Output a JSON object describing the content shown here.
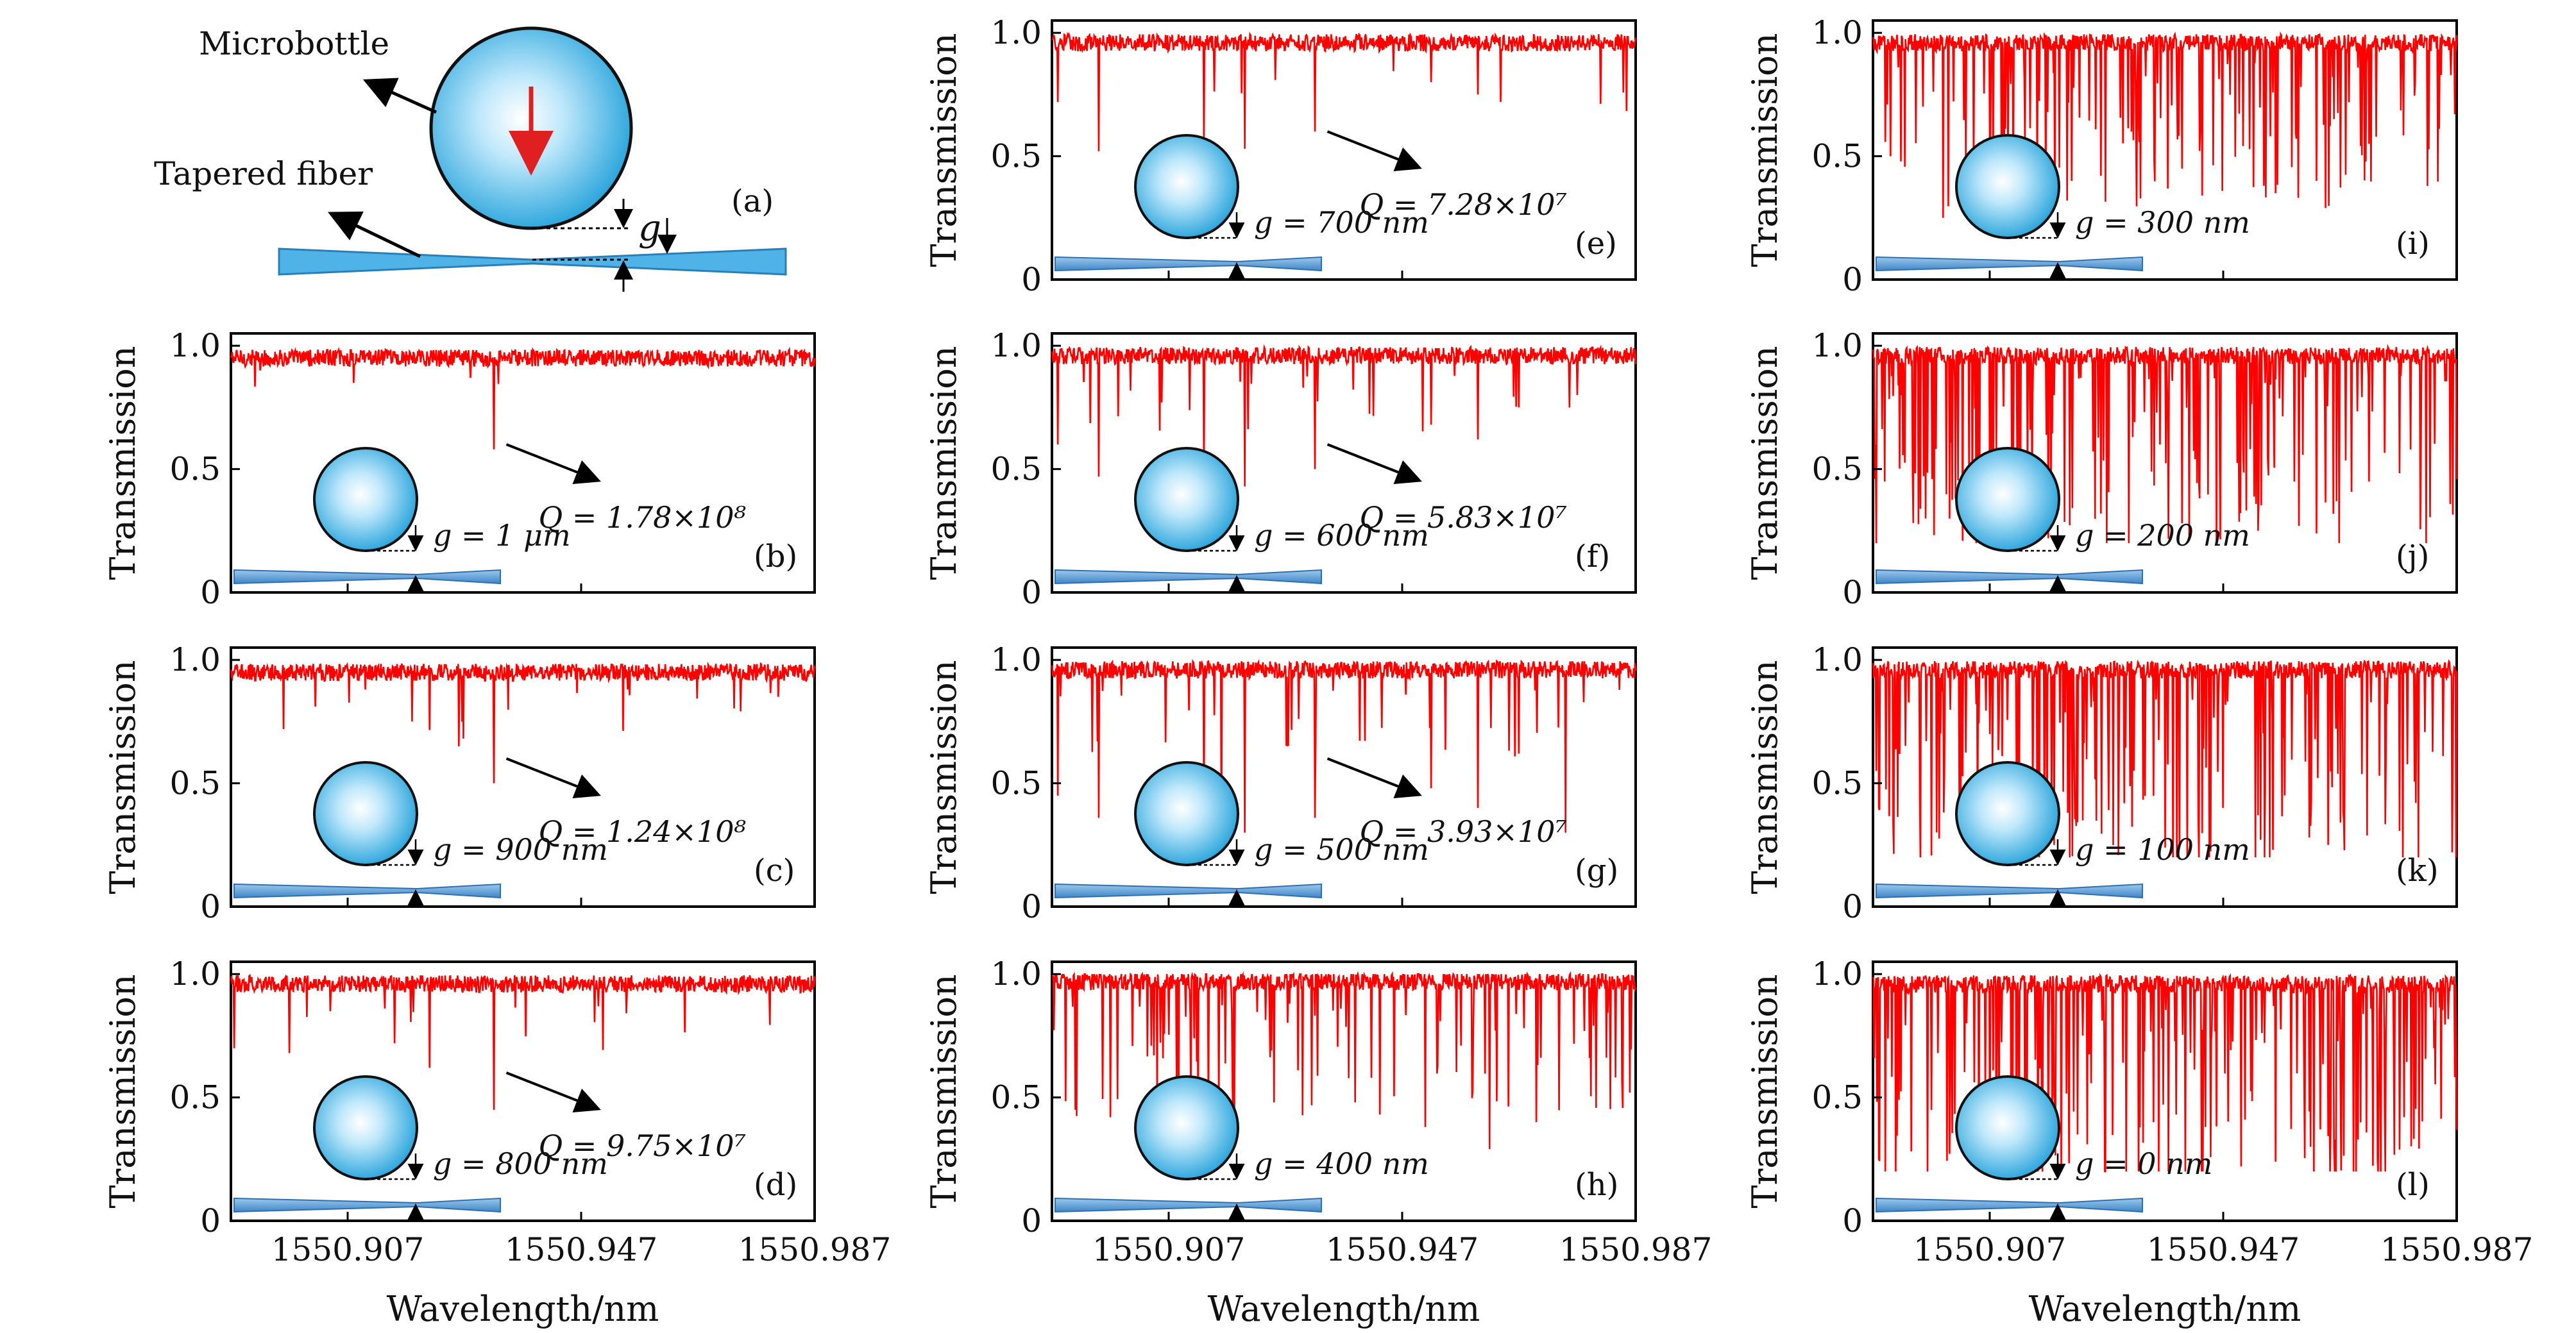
{
  "schematic": {
    "label": "(a)",
    "microbottle_label": "Microbottle",
    "fiber_label": "Tapered fiber",
    "gap_symbol": "g"
  },
  "axes": {
    "ylabel": "Transmission",
    "xlabel": "Wavelength/nm",
    "yticks": [
      "0",
      "0.5",
      "1.0"
    ],
    "xticks": [
      "1550.907",
      "1550.947",
      "1550.987"
    ]
  },
  "colors": {
    "trace": "#ff0000",
    "sphere_center": "#e6f7ff",
    "sphere_edge": "#1d9fd9",
    "fiber": "#5aa3d9",
    "arrow_red": "#e02020"
  },
  "chart_data": [
    {
      "id": "b",
      "type": "line",
      "label": "(b)",
      "gap": "g = 1 μm",
      "q": "Q = 1.78×10⁸",
      "xlim": [
        1550.887,
        1550.987
      ],
      "ylim": [
        0,
        1.05
      ],
      "baseline": 0.95,
      "density": 8,
      "dips": [
        {
          "x": 1550.932,
          "y": 0.58
        },
        {
          "x": 1550.908,
          "y": 0.85
        },
        {
          "x": 1550.928,
          "y": 0.87
        },
        {
          "x": 1550.892,
          "y": 0.9
        }
      ]
    },
    {
      "id": "c",
      "type": "line",
      "label": "(c)",
      "gap": "g = 900 nm",
      "q": "Q = 1.24×10⁸",
      "xlim": [
        1550.887,
        1550.987
      ],
      "ylim": [
        0,
        1.05
      ],
      "baseline": 0.95,
      "density": 10,
      "dips": [
        {
          "x": 1550.932,
          "y": 0.5
        },
        {
          "x": 1550.896,
          "y": 0.72
        },
        {
          "x": 1550.918,
          "y": 0.75
        },
        {
          "x": 1550.926,
          "y": 0.65
        },
        {
          "x": 1550.91,
          "y": 0.88
        },
        {
          "x": 1550.955,
          "y": 0.88
        }
      ]
    },
    {
      "id": "d",
      "type": "line",
      "label": "(d)",
      "gap": "g = 800 nm",
      "q": "Q = 9.75×10⁷",
      "xlim": [
        1550.887,
        1550.987
      ],
      "ylim": [
        0,
        1.05
      ],
      "baseline": 0.96,
      "density": 12,
      "dips": [
        {
          "x": 1550.932,
          "y": 0.45
        },
        {
          "x": 1550.897,
          "y": 0.68
        },
        {
          "x": 1550.915,
          "y": 0.72
        },
        {
          "x": 1550.921,
          "y": 0.62
        },
        {
          "x": 1550.904,
          "y": 0.85
        },
        {
          "x": 1550.95,
          "y": 0.87
        }
      ]
    },
    {
      "id": "e",
      "type": "line",
      "label": "(e)",
      "gap": "g = 700 nm",
      "q": "Q = 7.28×10⁷",
      "xlim": [
        1550.887,
        1550.987
      ],
      "ylim": [
        0,
        1.05
      ],
      "baseline": 0.96,
      "density": 14,
      "dips": [
        {
          "x": 1550.888,
          "y": 0.72
        },
        {
          "x": 1550.895,
          "y": 0.52
        },
        {
          "x": 1550.913,
          "y": 0.55
        },
        {
          "x": 1550.92,
          "y": 0.53
        },
        {
          "x": 1550.932,
          "y": 0.6
        },
        {
          "x": 1550.952,
          "y": 0.8
        },
        {
          "x": 1550.96,
          "y": 0.75
        }
      ]
    },
    {
      "id": "f",
      "type": "line",
      "label": "(f)",
      "gap": "g = 600 nm",
      "q": "Q = 5.83×10⁷",
      "xlim": [
        1550.887,
        1550.987
      ],
      "ylim": [
        0,
        1.05
      ],
      "baseline": 0.96,
      "density": 20,
      "dips": [
        {
          "x": 1550.888,
          "y": 0.6
        },
        {
          "x": 1550.895,
          "y": 0.47
        },
        {
          "x": 1550.913,
          "y": 0.48
        },
        {
          "x": 1550.92,
          "y": 0.43
        },
        {
          "x": 1550.932,
          "y": 0.5
        },
        {
          "x": 1550.952,
          "y": 0.68
        },
        {
          "x": 1550.96,
          "y": 0.62
        },
        {
          "x": 1550.967,
          "y": 0.75
        },
        {
          "x": 1550.977,
          "y": 0.8
        }
      ]
    },
    {
      "id": "g",
      "type": "line",
      "label": "(g)",
      "gap": "g = 500 nm",
      "q": "Q = 3.93×10⁷",
      "xlim": [
        1550.887,
        1550.987
      ],
      "ylim": [
        0,
        1.05
      ],
      "baseline": 0.96,
      "density": 32,
      "dips": [
        {
          "x": 1550.888,
          "y": 0.45
        },
        {
          "x": 1550.895,
          "y": 0.36
        },
        {
          "x": 1550.913,
          "y": 0.38
        },
        {
          "x": 1550.916,
          "y": 0.27
        },
        {
          "x": 1550.92,
          "y": 0.3
        },
        {
          "x": 1550.932,
          "y": 0.36
        },
        {
          "x": 1550.952,
          "y": 0.48
        },
        {
          "x": 1550.96,
          "y": 0.4
        },
        {
          "x": 1550.967,
          "y": 0.62
        },
        {
          "x": 1550.975,
          "y": 0.3
        }
      ]
    },
    {
      "id": "h",
      "type": "line",
      "label": "(h)",
      "gap": "g = 400 nm",
      "q": "",
      "xlim": [
        1550.887,
        1550.987
      ],
      "ylim": [
        0,
        1.05
      ],
      "baseline": 0.97,
      "density": 80,
      "dips": [
        {
          "x": 1550.891,
          "y": 0.45
        },
        {
          "x": 1550.897,
          "y": 0.42
        },
        {
          "x": 1550.905,
          "y": 0.5
        },
        {
          "x": 1550.912,
          "y": 0.45
        },
        {
          "x": 1550.918,
          "y": 0.4
        },
        {
          "x": 1550.925,
          "y": 0.48
        },
        {
          "x": 1550.939,
          "y": 0.48
        },
        {
          "x": 1550.951,
          "y": 0.38
        },
        {
          "x": 1550.962,
          "y": 0.29
        },
        {
          "x": 1550.97,
          "y": 0.4
        }
      ]
    },
    {
      "id": "i",
      "type": "line",
      "label": "(i)",
      "gap": "g = 300 nm",
      "q": "",
      "xlim": [
        1550.887,
        1550.987
      ],
      "ylim": [
        0,
        1.05
      ],
      "baseline": 0.96,
      "density": 110,
      "dips": [
        {
          "x": 1550.89,
          "y": 0.5
        },
        {
          "x": 1550.899,
          "y": 0.25
        },
        {
          "x": 1550.907,
          "y": 0.45
        },
        {
          "x": 1550.913,
          "y": 0.55
        },
        {
          "x": 1550.921,
          "y": 0.4
        },
        {
          "x": 1550.94,
          "y": 0.45
        },
        {
          "x": 1550.954,
          "y": 0.38
        },
        {
          "x": 1550.956,
          "y": 0.35
        },
        {
          "x": 1550.963,
          "y": 0.4
        },
        {
          "x": 1550.972,
          "y": 0.55
        }
      ]
    },
    {
      "id": "j",
      "type": "line",
      "label": "(j)",
      "gap": "g = 200 nm",
      "q": "",
      "xlim": [
        1550.887,
        1550.987
      ],
      "ylim": [
        0,
        1.05
      ],
      "baseline": 0.96,
      "density": 140,
      "dips": [
        {
          "x": 1550.889,
          "y": 0.45
        },
        {
          "x": 1550.896,
          "y": 0.3
        },
        {
          "x": 1550.904,
          "y": 0.32
        },
        {
          "x": 1550.912,
          "y": 0.25
        },
        {
          "x": 1550.917,
          "y": 0.22
        },
        {
          "x": 1550.926,
          "y": 0.32
        },
        {
          "x": 1550.94,
          "y": 0.28
        },
        {
          "x": 1550.953,
          "y": 0.25
        },
        {
          "x": 1550.96,
          "y": 0.27
        },
        {
          "x": 1550.972,
          "y": 0.45
        }
      ]
    },
    {
      "id": "k",
      "type": "line",
      "label": "(k)",
      "gap": "g = 100 nm",
      "q": "",
      "xlim": [
        1550.887,
        1550.987
      ],
      "ylim": [
        0,
        1.05
      ],
      "baseline": 0.96,
      "density": 150,
      "dips": [
        {
          "x": 1550.888,
          "y": 0.4
        },
        {
          "x": 1550.895,
          "y": 0.45
        },
        {
          "x": 1550.902,
          "y": 0.35
        },
        {
          "x": 1550.912,
          "y": 0.22
        },
        {
          "x": 1550.918,
          "y": 0.25
        },
        {
          "x": 1550.935,
          "y": 0.45
        },
        {
          "x": 1550.947,
          "y": 0.4
        },
        {
          "x": 1550.953,
          "y": 0.37
        },
        {
          "x": 1550.965,
          "y": 0.25
        },
        {
          "x": 1550.98,
          "y": 0.42
        }
      ]
    },
    {
      "id": "l",
      "type": "line",
      "label": "(l)",
      "gap": "g = 0 nm",
      "q": "",
      "xlim": [
        1550.887,
        1550.987
      ],
      "ylim": [
        0,
        1.05
      ],
      "baseline": 0.96,
      "density": 160,
      "dips": [
        {
          "x": 1550.888,
          "y": 0.25
        },
        {
          "x": 1550.897,
          "y": 0.45
        },
        {
          "x": 1550.912,
          "y": 0.32
        },
        {
          "x": 1550.917,
          "y": 0.28
        },
        {
          "x": 1550.922,
          "y": 0.35
        },
        {
          "x": 1550.935,
          "y": 0.4
        },
        {
          "x": 1550.944,
          "y": 0.38
        },
        {
          "x": 1550.956,
          "y": 0.24
        },
        {
          "x": 1550.962,
          "y": 0.3
        },
        {
          "x": 1550.978,
          "y": 0.42
        }
      ]
    }
  ]
}
